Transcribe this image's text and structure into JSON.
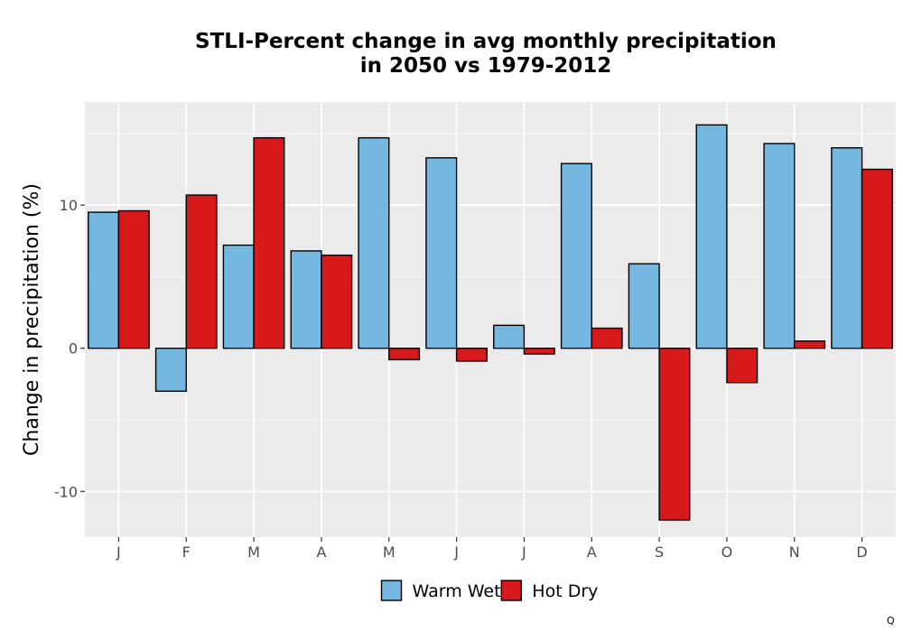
{
  "chart_data": {
    "type": "bar",
    "title_lines": [
      "STLI-Percent change in avg monthly precipitation",
      "in 2050 vs 1979-2012"
    ],
    "xlabel": "",
    "ylabel": "Change in precipitation (%)",
    "categories": [
      "J",
      "F",
      "M",
      "A",
      "M",
      "J",
      "J",
      "A",
      "S",
      "O",
      "N",
      "D"
    ],
    "series": [
      {
        "name": "Warm Wet",
        "color": "#74b7e0",
        "values": [
          9.5,
          -3.0,
          7.2,
          6.8,
          14.7,
          13.3,
          1.6,
          12.9,
          5.9,
          15.6,
          14.3,
          14.0
        ]
      },
      {
        "name": "Hot Dry",
        "color": "#d7191c",
        "values": [
          9.6,
          10.7,
          14.7,
          6.5,
          -0.8,
          -0.9,
          -0.4,
          1.4,
          -12.0,
          -2.4,
          0.5,
          12.5
        ]
      }
    ],
    "ylim": [
      -13.2,
      17.2
    ],
    "yticks": [
      -10,
      0,
      10
    ],
    "ytick_labels": [
      "-10",
      "0",
      "10"
    ],
    "grid": true,
    "legend_position": "bottom",
    "panel_background": "#ebebeb",
    "bar_outline": "#000000"
  },
  "corner_mark": "Q"
}
